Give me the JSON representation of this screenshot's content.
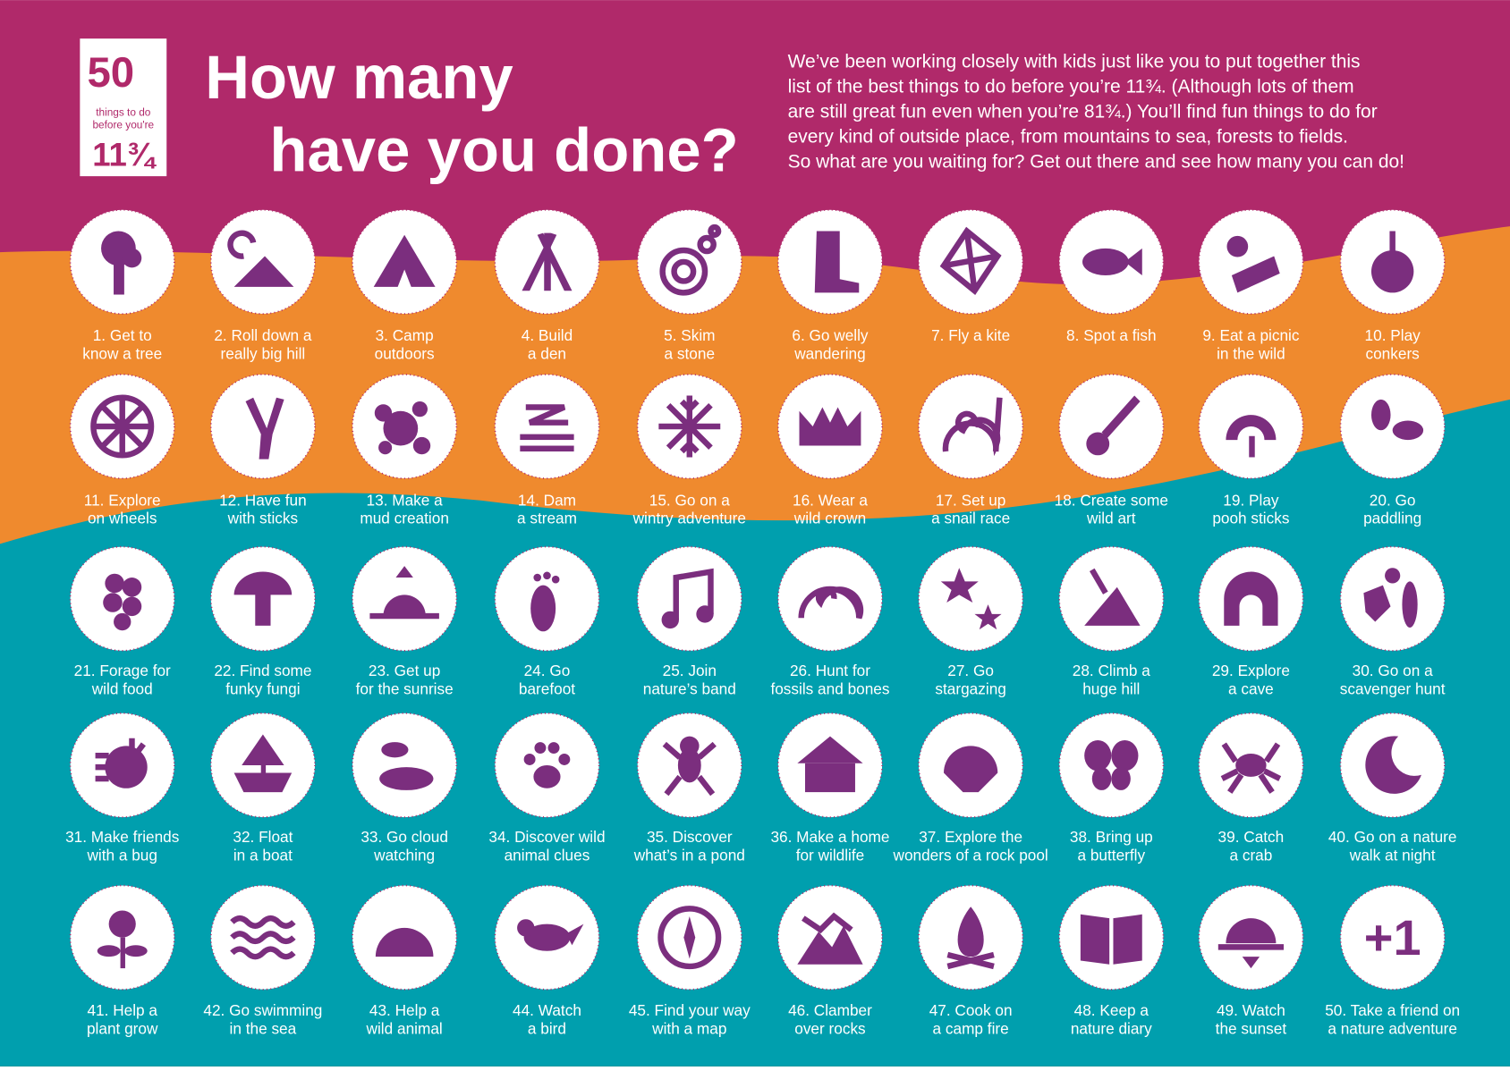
{
  "logo": {
    "number": "50",
    "line1": "things to do",
    "line2": "before you're",
    "age": "11¾"
  },
  "title": {
    "line1": "How many",
    "line2": "have you done?"
  },
  "intro": [
    "We’ve been working closely with kids just like you to put together this",
    "list of the best things to do before you’re 11¾. (Although lots of them",
    "are still great fun even when you’re 81¾.) You’ll find fun things to do for",
    "every kind of outside place, from mountains to sea, forests to fields.",
    "So what are you waiting for? Get out there and see how many you can do!"
  ],
  "items": [
    {
      "lines": [
        "1. Get to",
        "know a tree"
      ]
    },
    {
      "lines": [
        "2. Roll down a",
        "really big hill"
      ]
    },
    {
      "lines": [
        "3. Camp",
        "outdoors"
      ]
    },
    {
      "lines": [
        "4. Build",
        "a den"
      ]
    },
    {
      "lines": [
        "5. Skim",
        "a stone"
      ]
    },
    {
      "lines": [
        "6. Go welly",
        "wandering"
      ]
    },
    {
      "lines": [
        "7. Fly a kite"
      ]
    },
    {
      "lines": [
        "8. Spot a fish"
      ]
    },
    {
      "lines": [
        "9. Eat a picnic",
        "in the wild"
      ]
    },
    {
      "lines": [
        "10. Play",
        "conkers"
      ]
    },
    {
      "lines": [
        "11. Explore",
        "on wheels"
      ]
    },
    {
      "lines": [
        "12. Have fun",
        "with sticks"
      ]
    },
    {
      "lines": [
        "13. Make a",
        "mud creation"
      ]
    },
    {
      "lines": [
        "14. Dam",
        "a stream"
      ]
    },
    {
      "lines": [
        "15. Go on a",
        "wintry adventure"
      ]
    },
    {
      "lines": [
        "16. Wear a",
        "wild crown"
      ]
    },
    {
      "lines": [
        "17. Set up",
        "a snail race"
      ]
    },
    {
      "lines": [
        "18. Create some",
        "wild art"
      ]
    },
    {
      "lines": [
        "19. Play",
        "pooh sticks"
      ]
    },
    {
      "lines": [
        "20. Go",
        "paddling"
      ]
    },
    {
      "lines": [
        "21. Forage for",
        "wild food"
      ]
    },
    {
      "lines": [
        "22. Find some",
        "funky fungi"
      ]
    },
    {
      "lines": [
        "23. Get up",
        "for the sunrise"
      ]
    },
    {
      "lines": [
        "24. Go",
        "barefoot"
      ]
    },
    {
      "lines": [
        "25. Join",
        "nature’s band"
      ]
    },
    {
      "lines": [
        "26. Hunt for",
        "fossils and bones"
      ]
    },
    {
      "lines": [
        "27. Go",
        "stargazing"
      ]
    },
    {
      "lines": [
        "28. Climb a",
        "huge hill"
      ]
    },
    {
      "lines": [
        "29. Explore",
        "a cave"
      ]
    },
    {
      "lines": [
        "30. Go on a",
        "scavenger hunt"
      ]
    },
    {
      "lines": [
        "31. Make friends",
        "with a bug"
      ]
    },
    {
      "lines": [
        "32. Float",
        "in a boat"
      ]
    },
    {
      "lines": [
        "33. Go cloud",
        "watching"
      ]
    },
    {
      "lines": [
        "34. Discover wild",
        "animal clues"
      ]
    },
    {
      "lines": [
        "35. Discover",
        "what’s in a pond"
      ]
    },
    {
      "lines": [
        "36. Make a home",
        "for wildlife"
      ]
    },
    {
      "lines": [
        "37. Explore the",
        "wonders of a rock pool"
      ]
    },
    {
      "lines": [
        "38. Bring up",
        "a butterfly"
      ]
    },
    {
      "lines": [
        "39. Catch",
        "a crab"
      ]
    },
    {
      "lines": [
        "40. Go on a nature",
        "walk at night"
      ]
    },
    {
      "lines": [
        "41. Help a",
        "plant grow"
      ]
    },
    {
      "lines": [
        "42. Go swimming",
        "in the sea"
      ]
    },
    {
      "lines": [
        "43. Help a",
        "wild animal"
      ]
    },
    {
      "lines": [
        "44. Watch",
        "a bird"
      ]
    },
    {
      "lines": [
        "45. Find your way",
        "with a map"
      ]
    },
    {
      "lines": [
        "46. Clamber",
        "over rocks"
      ]
    },
    {
      "lines": [
        "47. Cook on",
        "a camp fire"
      ]
    },
    {
      "lines": [
        "48. Keep a",
        "nature diary"
      ]
    },
    {
      "lines": [
        "49. Watch",
        "the sunset"
      ]
    },
    {
      "lines": [
        "50. Take a friend on",
        "a nature adventure"
      ],
      "icon_text": "+1"
    }
  ]
}
